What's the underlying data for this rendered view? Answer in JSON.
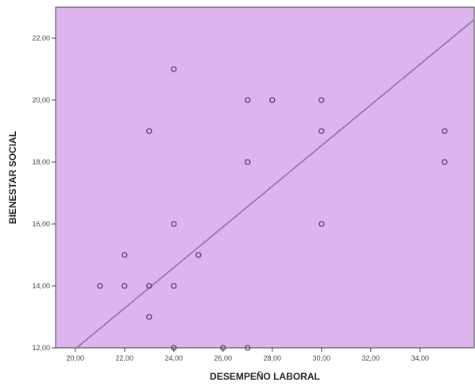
{
  "chart_data": {
    "type": "scatter",
    "title": "",
    "xlabel": "DESEMPEÑO LABORAL",
    "ylabel": "BIENESTAR SOCIAL",
    "xlim": [
      19.2,
      36.2
    ],
    "ylim": [
      12,
      23
    ],
    "x_ticks": [
      "20,00",
      "22,00",
      "24,00",
      "26,00",
      "28,00",
      "30,00",
      "32,00",
      "34,00"
    ],
    "x_tick_values": [
      20,
      22,
      24,
      26,
      28,
      30,
      32,
      34
    ],
    "y_ticks": [
      "12,00",
      "14,00",
      "16,00",
      "18,00",
      "20,00",
      "22,00"
    ],
    "y_tick_values": [
      12,
      14,
      16,
      18,
      20,
      22
    ],
    "grid": false,
    "background_color": "#dcb4ee",
    "marker_color": "#5a3a6e",
    "fit_line_color": "#9a6aae",
    "points": [
      {
        "x": 21,
        "y": 14
      },
      {
        "x": 22,
        "y": 15
      },
      {
        "x": 22,
        "y": 14
      },
      {
        "x": 23,
        "y": 19
      },
      {
        "x": 23,
        "y": 14
      },
      {
        "x": 23,
        "y": 13
      },
      {
        "x": 24,
        "y": 21
      },
      {
        "x": 24,
        "y": 16
      },
      {
        "x": 24,
        "y": 14
      },
      {
        "x": 24,
        "y": 12
      },
      {
        "x": 25,
        "y": 15
      },
      {
        "x": 26,
        "y": 12
      },
      {
        "x": 27,
        "y": 20
      },
      {
        "x": 27,
        "y": 18
      },
      {
        "x": 27,
        "y": 12
      },
      {
        "x": 28,
        "y": 20
      },
      {
        "x": 30,
        "y": 20
      },
      {
        "x": 30,
        "y": 19
      },
      {
        "x": 30,
        "y": 16
      },
      {
        "x": 35,
        "y": 19
      },
      {
        "x": 35,
        "y": 18
      }
    ],
    "fit_line": {
      "x": [
        20.05,
        36.2
      ],
      "y": [
        12,
        22.6
      ]
    }
  }
}
